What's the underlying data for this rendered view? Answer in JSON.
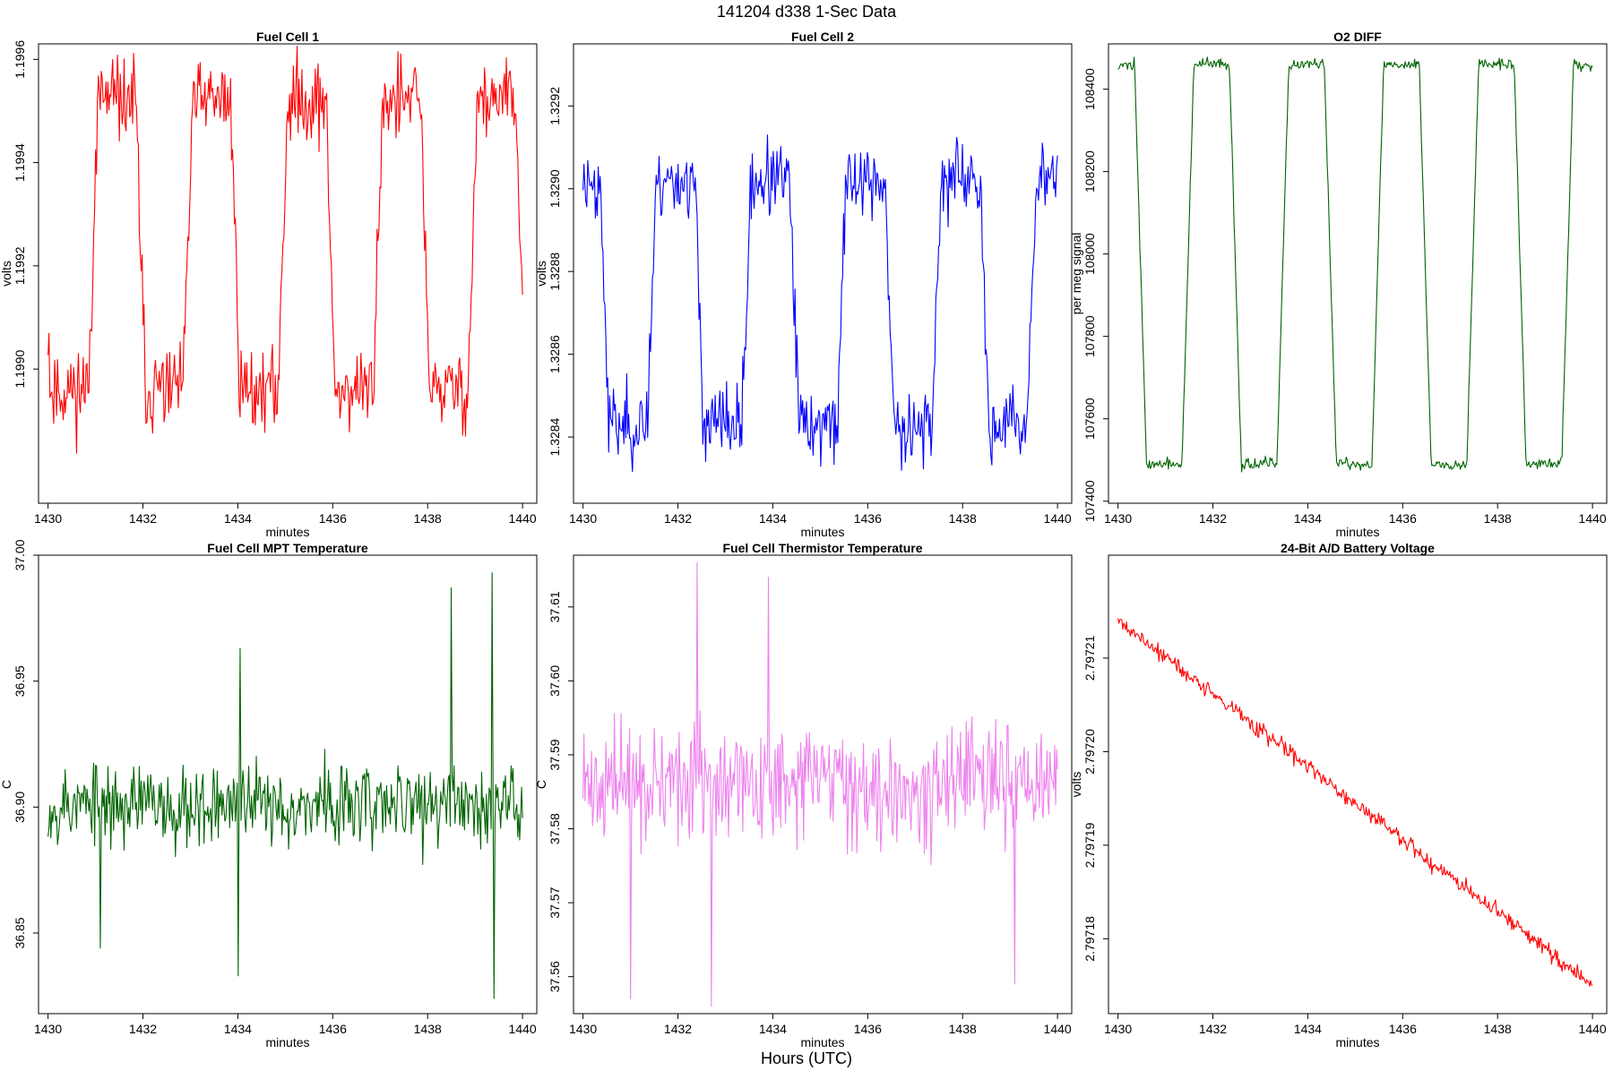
{
  "figure": {
    "title": "141204   d338   1-Sec Data",
    "bottom_label": "Hours (UTC)"
  },
  "chart_data": [
    {
      "type": "line",
      "title": "Fuel Cell 1",
      "xlabel": "minutes",
      "ylabel": "volts",
      "color": "#ff0000",
      "xlim": [
        1429.8,
        1440.3
      ],
      "ylim": [
        1.19874,
        1.19963
      ],
      "xticks": [
        1430,
        1432,
        1434,
        1436,
        1438,
        1440
      ],
      "xtick_labels": [
        "1430",
        "1432",
        "1434",
        "1436",
        "1438",
        "1440"
      ],
      "yticks": [
        1.199,
        1.1992,
        1.1994,
        1.1996
      ],
      "ytick_labels": [
        "1.1990",
        "1.1992",
        "1.1994",
        "1.1996"
      ],
      "signal": {
        "kind": "square",
        "start": 1430,
        "end": 1440,
        "points": 500,
        "high": 1.19952,
        "low": 1.19896,
        "period": 2,
        "phase": 0.85,
        "rise": 0.2,
        "noise": 8e-05,
        "seed": 11
      }
    },
    {
      "type": "line",
      "title": "Fuel Cell 2",
      "xlabel": "minutes",
      "ylabel": "volts",
      "color": "#0000ff",
      "xlim": [
        1429.8,
        1440.3
      ],
      "ylim": [
        1.32824,
        1.32935
      ],
      "xticks": [
        1430,
        1432,
        1434,
        1436,
        1438,
        1440
      ],
      "xtick_labels": [
        "1430",
        "1432",
        "1434",
        "1436",
        "1438",
        "1440"
      ],
      "yticks": [
        1.3284,
        1.3286,
        1.3288,
        1.329,
        1.3292
      ],
      "ytick_labels": [
        "1.3284",
        "1.3286",
        "1.3288",
        "1.3290",
        "1.3292"
      ],
      "signal": {
        "kind": "square",
        "start": 1430,
        "end": 1440,
        "points": 500,
        "high": 1.32902,
        "low": 1.32843,
        "period": 2,
        "phase": 1.35,
        "rise": 0.2,
        "noise": 9e-05,
        "seed": 23
      }
    },
    {
      "type": "line",
      "title": "O2 DIFF",
      "xlabel": "minutes",
      "ylabel": "per meg signal",
      "color": "#006400",
      "xlim": [
        1429.8,
        1440.3
      ],
      "ylim": [
        107395,
        108510
      ],
      "xticks": [
        1430,
        1432,
        1434,
        1436,
        1438,
        1440
      ],
      "xtick_labels": [
        "1430",
        "1432",
        "1434",
        "1436",
        "1438",
        "1440"
      ],
      "yticks": [
        107400,
        107600,
        107800,
        108000,
        108200,
        108400
      ],
      "ytick_labels": [
        "107400",
        "107600",
        "107800",
        "108000",
        "108200",
        "108400"
      ],
      "signal": {
        "kind": "square",
        "start": 1430,
        "end": 1440,
        "points": 500,
        "high": 108460,
        "low": 107490,
        "period": 2,
        "phase": 1.35,
        "rise": 0.25,
        "noise": 14,
        "seed": 37
      }
    },
    {
      "type": "line",
      "title": "Fuel Cell MPT Temperature",
      "xlabel": "minutes",
      "ylabel": "C",
      "color": "#006400",
      "xlim": [
        1429.8,
        1440.3
      ],
      "ylim": [
        36.818,
        37.0
      ],
      "xticks": [
        1430,
        1432,
        1434,
        1436,
        1438,
        1440
      ],
      "xtick_labels": [
        "1430",
        "1432",
        "1434",
        "1436",
        "1438",
        "1440"
      ],
      "yticks": [
        36.85,
        36.9,
        36.95,
        37.0
      ],
      "ytick_labels": [
        "36.85",
        "36.90",
        "36.95",
        "37.00"
      ],
      "signal": {
        "kind": "noise",
        "start": 1430,
        "end": 1440,
        "points": 500,
        "center": 36.901,
        "amp": 0.016,
        "seed": 53,
        "spikes": [
          [
            1438.5,
            36.987
          ],
          [
            1439.35,
            36.993
          ],
          [
            1434.05,
            36.963
          ],
          [
            1439.4,
            36.824
          ],
          [
            1434.0,
            36.833
          ],
          [
            1431.1,
            36.844
          ]
        ]
      }
    },
    {
      "type": "line",
      "title": "Fuel Cell Thermistor Temperature",
      "xlabel": "minutes",
      "ylabel": "C",
      "color": "#ee82ee",
      "xlim": [
        1429.8,
        1440.3
      ],
      "ylim": [
        37.555,
        37.617
      ],
      "xticks": [
        1430,
        1432,
        1434,
        1436,
        1438,
        1440
      ],
      "xtick_labels": [
        "1430",
        "1432",
        "1434",
        "1436",
        "1438",
        "1440"
      ],
      "yticks": [
        37.56,
        37.57,
        37.58,
        37.59,
        37.6,
        37.61
      ],
      "ytick_labels": [
        "37.56",
        "37.57",
        "37.58",
        "37.59",
        "37.60",
        "37.61"
      ],
      "signal": {
        "kind": "noise",
        "start": 1430,
        "end": 1440,
        "points": 500,
        "center": 37.586,
        "amp": 0.0075,
        "seed": 71,
        "spikes": [
          [
            1432.4,
            37.616
          ],
          [
            1432.7,
            37.556
          ],
          [
            1431.0,
            37.557
          ],
          [
            1433.9,
            37.614
          ],
          [
            1439.1,
            37.559
          ]
        ]
      }
    },
    {
      "type": "line",
      "title": "24-Bit A/D Battery Voltage",
      "xlabel": "minutes",
      "ylabel": "volts",
      "color": "#ff0000",
      "xlim": [
        1429.8,
        1440.3
      ],
      "ylim": [
        2.797172,
        2.797221
      ],
      "xticks": [
        1430,
        1432,
        1434,
        1436,
        1438,
        1440
      ],
      "xtick_labels": [
        "1430",
        "1432",
        "1434",
        "1436",
        "1438",
        "1440"
      ],
      "yticks": [
        2.79718,
        2.79719,
        2.7972,
        2.79721
      ],
      "ytick_labels": [
        "2.79718",
        "2.79719",
        "2.79720",
        "2.79721"
      ],
      "signal": {
        "kind": "trend",
        "start": 1430,
        "end": 1440,
        "points": 500,
        "from": 2.797214,
        "to": 2.797175,
        "noise": 9e-07,
        "seed": 89
      }
    }
  ]
}
